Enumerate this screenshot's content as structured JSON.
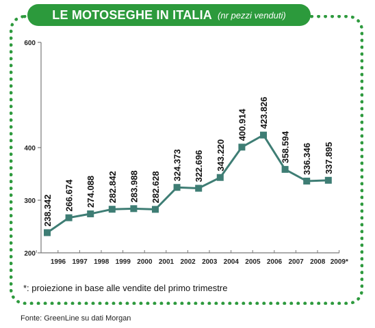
{
  "title": "LE MOTOSEGHE IN ITALIA",
  "subtitle": "(nr pezzi venduti)",
  "footnote": "*: proiezione in base alle vendite del primo trimestre",
  "source": "Fonte: GreenLine su dati Morgan",
  "colors": {
    "accent": "#2c9a3c",
    "line": "#3e7d74",
    "marker": "#3e7d74"
  },
  "chart_data": {
    "type": "line",
    "categories": [
      "1996",
      "1997",
      "1998",
      "1999",
      "2000",
      "2001",
      "2002",
      "2003",
      "2004",
      "2005",
      "2006",
      "2007",
      "2008",
      "2009*"
    ],
    "values": [
      238.342,
      266.674,
      274.088,
      282.842,
      283.988,
      282.628,
      324.373,
      322.696,
      343.22,
      400.914,
      423.826,
      358.594,
      336.346,
      337.895
    ],
    "data_labels": [
      "238.342",
      "266.674",
      "274.088",
      "282.842",
      "283.988",
      "282.628",
      "324.373",
      "322.696",
      "343.220",
      "400.914",
      "423.826",
      "358.594",
      "336.346",
      "337.895"
    ],
    "ylim": [
      200,
      600
    ],
    "yticks": [
      200,
      300,
      400,
      600
    ],
    "xlabel": "",
    "ylabel": "",
    "grid": false,
    "legend": "none"
  }
}
